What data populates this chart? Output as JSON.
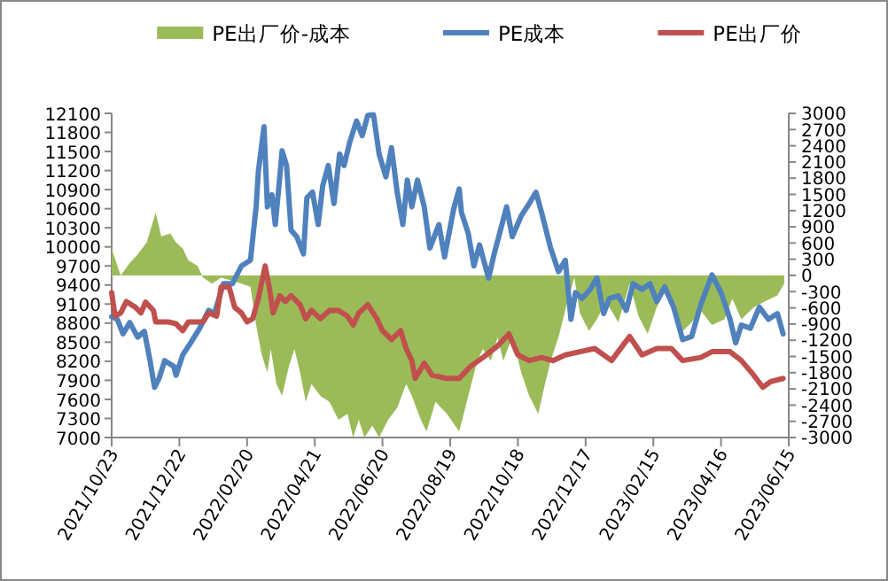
{
  "chart_data": {
    "type": "line",
    "legend": "top",
    "marker": "none",
    "ylim": [
      7000,
      12100
    ],
    "yticks": [
      7000,
      7300,
      7600,
      7900,
      8200,
      8500,
      8800,
      9100,
      9400,
      9700,
      10000,
      10300,
      10600,
      10900,
      11200,
      11500,
      11800,
      12100
    ],
    "y2lim": [
      -3000,
      3000
    ],
    "y2ticks": [
      -3000,
      -2700,
      -2400,
      -2100,
      -1800,
      -1500,
      -1200,
      -900,
      -600,
      -300,
      0,
      300,
      600,
      900,
      1200,
      1500,
      1800,
      2100,
      2400,
      2700,
      3000
    ],
    "xlim": [
      "2021-10-23",
      "2023-06-15"
    ],
    "xticks": [
      {
        "value": "2021-10-23",
        "label": "2021/10/23"
      },
      {
        "value": "2021-12-22",
        "label": "2021/12/22"
      },
      {
        "value": "2022-02-20",
        "label": "2022/02/20"
      },
      {
        "value": "2022-04-21",
        "label": "2022/04/21"
      },
      {
        "value": "2022-06-20",
        "label": "2022/06/20"
      },
      {
        "value": "2022-08-19",
        "label": "2022/08/19"
      },
      {
        "value": "2022-10-18",
        "label": "2022/10/18"
      },
      {
        "value": "2022-12-17",
        "label": "2022/12/17"
      },
      {
        "value": "2023-02-15",
        "label": "2023/02/15"
      },
      {
        "value": "2023-04-16",
        "label": "2023/04/16"
      },
      {
        "value": "2023-06-15",
        "label": "2023/06/15"
      }
    ],
    "series": [
      {
        "name": "PE出厂价-成本",
        "type": "area",
        "axis": "y2",
        "color": "#9bbb59",
        "x": [
          "2021-10-23",
          "2021-10-28",
          "2021-10-31",
          "2021-11-08",
          "2021-11-15",
          "2021-11-23",
          "2021-12-01",
          "2021-12-06",
          "2021-12-14",
          "2021-12-19",
          "2021-12-25",
          "2021-12-30",
          "2022-01-07",
          "2022-01-12",
          "2022-01-20",
          "2022-01-28",
          "2022-02-07",
          "2022-02-15",
          "2022-02-23",
          "2022-02-28",
          "2022-03-05",
          "2022-03-10",
          "2022-03-13",
          "2022-03-18",
          "2022-03-23",
          "2022-03-29",
          "2022-04-03",
          "2022-04-08",
          "2022-04-13",
          "2022-04-18",
          "2022-04-26",
          "2022-05-04",
          "2022-05-12",
          "2022-05-20",
          "2022-05-25",
          "2022-05-30",
          "2022-06-04",
          "2022-06-11",
          "2022-06-17",
          "2022-06-25",
          "2022-07-03",
          "2022-07-11",
          "2022-07-16",
          "2022-07-24",
          "2022-07-29",
          "2022-08-06",
          "2022-08-16",
          "2022-08-27",
          "2022-09-04",
          "2022-09-12",
          "2022-09-17",
          "2022-09-24",
          "2022-09-30",
          "2022-10-05",
          "2022-10-13",
          "2022-10-21",
          "2022-10-28",
          "2022-11-05",
          "2022-11-11",
          "2022-11-16",
          "2022-11-23",
          "2022-12-01",
          "2022-12-07",
          "2022-12-12",
          "2022-12-20",
          "2022-12-27",
          "2023-01-04",
          "2023-01-15",
          "2023-01-25",
          "2023-02-02",
          "2023-02-10",
          "2023-02-18",
          "2023-02-25",
          "2023-03-05",
          "2023-03-13",
          "2023-03-21",
          "2023-03-29",
          "2023-04-08",
          "2023-04-19",
          "2023-04-26",
          "2023-05-04",
          "2023-05-15",
          "2023-05-25",
          "2023-06-05",
          "2023-06-11"
        ],
        "values": [
          500,
          180,
          0,
          230,
          390,
          610,
          1160,
          720,
          780,
          610,
          500,
          280,
          180,
          -40,
          -150,
          -40,
          -100,
          -150,
          -210,
          -920,
          -1470,
          -1800,
          -1360,
          -2010,
          -2230,
          -1690,
          -1360,
          -1800,
          -2340,
          -2010,
          -2230,
          -2340,
          -2670,
          -2560,
          -3000,
          -2670,
          -3000,
          -2780,
          -3000,
          -2670,
          -2450,
          -2010,
          -2230,
          -2670,
          -2890,
          -2340,
          -2560,
          -2890,
          -2230,
          -1580,
          -1360,
          -1580,
          -1140,
          -1580,
          -1140,
          -1800,
          -2230,
          -2560,
          -2010,
          -1580,
          -1140,
          -480,
          -40,
          -700,
          -1030,
          -810,
          -480,
          -870,
          -150,
          -760,
          -1080,
          -590,
          -320,
          -590,
          -1030,
          -870,
          -650,
          -920,
          -810,
          -430,
          -810,
          -590,
          -480,
          -370,
          -150
        ]
      },
      {
        "name": "PE成本",
        "type": "line",
        "color": "#4f81bd",
        "x": [
          "2021-10-23",
          "2021-10-28",
          "2021-11-02",
          "2021-11-08",
          "2021-11-15",
          "2021-11-21",
          "2021-11-26",
          "2021-11-30",
          "2021-12-04",
          "2021-12-09",
          "2021-12-17",
          "2021-12-19",
          "2021-12-25",
          "2022-01-01",
          "2022-01-09",
          "2022-01-17",
          "2022-01-22",
          "2022-01-30",
          "2022-02-07",
          "2022-02-15",
          "2022-02-23",
          "2022-02-28",
          "2022-03-02",
          "2022-03-07",
          "2022-03-10",
          "2022-03-14",
          "2022-03-17",
          "2022-03-21",
          "2022-03-23",
          "2022-03-27",
          "2022-03-31",
          "2022-04-05",
          "2022-04-11",
          "2022-04-14",
          "2022-04-19",
          "2022-04-24",
          "2022-04-28",
          "2022-05-03",
          "2022-05-08",
          "2022-05-13",
          "2022-05-17",
          "2022-05-22",
          "2022-05-28",
          "2022-06-02",
          "2022-06-07",
          "2022-06-12",
          "2022-06-17",
          "2022-06-23",
          "2022-06-28",
          "2022-07-03",
          "2022-07-08",
          "2022-07-12",
          "2022-07-16",
          "2022-07-21",
          "2022-07-27",
          "2022-08-01",
          "2022-08-09",
          "2022-08-14",
          "2022-08-22",
          "2022-08-27",
          "2022-08-29",
          "2022-09-04",
          "2022-09-09",
          "2022-09-14",
          "2022-09-22",
          "2022-09-27",
          "2022-10-08",
          "2022-10-13",
          "2022-10-21",
          "2022-10-28",
          "2022-11-03",
          "2022-11-08",
          "2022-11-16",
          "2022-11-23",
          "2022-11-29",
          "2022-12-04",
          "2022-12-08",
          "2022-12-14",
          "2022-12-21",
          "2022-12-27",
          "2023-01-02",
          "2023-01-07",
          "2023-01-15",
          "2023-01-22",
          "2023-01-28",
          "2023-02-05",
          "2023-02-12",
          "2023-02-18",
          "2023-02-25",
          "2023-03-05",
          "2023-03-13",
          "2023-03-21",
          "2023-03-29",
          "2023-04-08",
          "2023-04-16",
          "2023-04-24",
          "2023-04-29",
          "2023-05-04",
          "2023-05-12",
          "2023-05-20",
          "2023-05-28",
          "2023-06-05",
          "2023-06-10"
        ],
        "values": [
          8900,
          8860,
          8630,
          8810,
          8580,
          8670,
          8210,
          7790,
          7930,
          8210,
          8120,
          7980,
          8300,
          8490,
          8720,
          9000,
          8950,
          9420,
          9420,
          9700,
          9790,
          10630,
          11190,
          11890,
          10630,
          10820,
          10350,
          11100,
          11510,
          11280,
          10260,
          10160,
          9890,
          10770,
          10860,
          10350,
          10960,
          11280,
          10680,
          11460,
          11280,
          11650,
          11980,
          11750,
          12070,
          12080,
          11460,
          11100,
          11560,
          10860,
          10350,
          11050,
          10630,
          11050,
          10630,
          9980,
          10350,
          9840,
          10590,
          10910,
          10540,
          10210,
          9700,
          10030,
          9510,
          9890,
          10630,
          10160,
          10490,
          10680,
          10860,
          10540,
          9980,
          9610,
          9790,
          8860,
          9280,
          9190,
          9330,
          9510,
          8950,
          9190,
          9230,
          9000,
          9420,
          9330,
          9420,
          9140,
          9370,
          9050,
          8540,
          8590,
          9090,
          9560,
          9280,
          8860,
          8490,
          8770,
          8720,
          9050,
          8860,
          8950,
          8630
        ]
      },
      {
        "name": "PE出厂价",
        "type": "line",
        "color": "#c0504d",
        "x": [
          "2021-10-23",
          "2021-10-26",
          "2021-10-31",
          "2021-11-05",
          "2021-11-13",
          "2021-11-18",
          "2021-11-22",
          "2021-11-29",
          "2021-12-01",
          "2021-12-12",
          "2021-12-19",
          "2021-12-25",
          "2021-12-30",
          "2022-01-12",
          "2022-01-17",
          "2022-01-24",
          "2022-01-28",
          "2022-02-04",
          "2022-02-09",
          "2022-02-15",
          "2022-02-20",
          "2022-02-25",
          "2022-03-02",
          "2022-03-08",
          "2022-03-12",
          "2022-03-15",
          "2022-03-21",
          "2022-03-26",
          "2022-03-31",
          "2022-04-08",
          "2022-04-13",
          "2022-04-18",
          "2022-04-26",
          "2022-05-04",
          "2022-05-12",
          "2022-05-20",
          "2022-05-25",
          "2022-05-30",
          "2022-06-07",
          "2022-06-15",
          "2022-06-20",
          "2022-06-28",
          "2022-07-06",
          "2022-07-11",
          "2022-07-16",
          "2022-07-19",
          "2022-07-27",
          "2022-08-03",
          "2022-08-16",
          "2022-08-27",
          "2022-09-06",
          "2022-09-17",
          "2022-09-30",
          "2022-10-10",
          "2022-10-18",
          "2022-10-28",
          "2022-11-08",
          "2022-11-18",
          "2022-11-29",
          "2022-12-12",
          "2022-12-25",
          "2023-01-09",
          "2023-01-25",
          "2023-02-05",
          "2023-02-18",
          "2023-03-03",
          "2023-03-13",
          "2023-03-29",
          "2023-04-08",
          "2023-04-24",
          "2023-05-04",
          "2023-05-15",
          "2023-05-23",
          "2023-05-30",
          "2023-06-10"
        ],
        "values": [
          9280,
          8910,
          8960,
          9140,
          9050,
          8960,
          9130,
          9000,
          8820,
          8820,
          8790,
          8680,
          8820,
          8820,
          8960,
          8910,
          9370,
          9370,
          9050,
          8960,
          8820,
          8870,
          9190,
          9700,
          9330,
          8960,
          9230,
          9140,
          9230,
          9090,
          8870,
          9000,
          8870,
          9000,
          9000,
          8910,
          8770,
          8960,
          9090,
          8870,
          8680,
          8540,
          8680,
          8400,
          8210,
          7930,
          8170,
          7980,
          7930,
          7930,
          8120,
          8260,
          8440,
          8630,
          8300,
          8210,
          8260,
          8210,
          8300,
          8350,
          8400,
          8210,
          8590,
          8300,
          8400,
          8400,
          8210,
          8260,
          8350,
          8350,
          8210,
          7980,
          7790,
          7880,
          7930
        ]
      }
    ]
  }
}
